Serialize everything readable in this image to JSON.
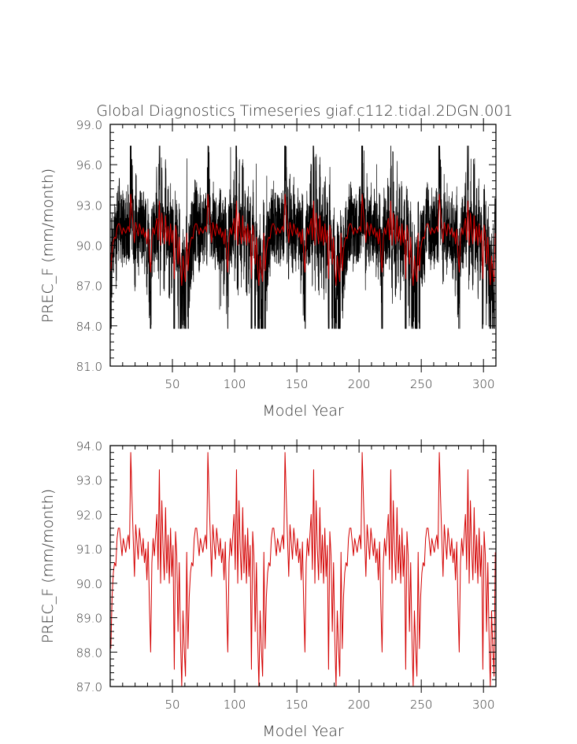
{
  "chart_data": [
    {
      "type": "line",
      "title": "Global Diagnostics Timeseries giaf.c112.tidal.2DGN.001",
      "xlabel": "Model Year",
      "ylabel": "PREC_F (mm/month)",
      "xlim": [
        0,
        310
      ],
      "ylim": [
        81.0,
        99.0
      ],
      "x_ticks": [
        50,
        100,
        150,
        200,
        250,
        300
      ],
      "y_ticks": [
        "81.0",
        "84.0",
        "87.0",
        "90.0",
        "93.0",
        "96.0",
        "99.0"
      ],
      "series": [
        {
          "color": "#000000",
          "x_start": 0.0417,
          "x_step": 0.0833,
          "count": 3720,
          "cycle_years": 62,
          "mean": 91.0,
          "noise_amplitude": 2.6,
          "min": 83.8,
          "max": 97.4
        },
        {
          "color": "#d40000",
          "x_start": 0.5,
          "x_step": 1,
          "count": 310,
          "cycle_years": 62,
          "mean": 91.0,
          "min": 87.0,
          "max": 93.8
        }
      ]
    },
    {
      "type": "line",
      "title": "",
      "xlabel": "Model Year",
      "ylabel": "PREC_F (mm/month)",
      "xlim": [
        0,
        310
      ],
      "ylim": [
        87.0,
        94.0
      ],
      "x_ticks": [
        50,
        100,
        150,
        200,
        250,
        300
      ],
      "y_ticks": [
        "87.0",
        "88.0",
        "89.0",
        "90.0",
        "91.0",
        "92.0",
        "93.0",
        "94.0"
      ],
      "series": [
        {
          "color": "#d40000",
          "x_start": 0.5,
          "x_step": 1,
          "count": 310,
          "cycle_years": 62,
          "cycle_values": [
            88.1,
            89.6,
            90.3,
            90.6,
            90.5,
            91.3,
            91.6,
            91.6,
            91.2,
            90.8,
            91.3,
            91.1,
            90.9,
            91.2,
            91.4,
            91.0,
            93.8,
            92.5,
            91.3,
            90.2,
            91.7,
            91.2,
            90.7,
            91.6,
            91.2,
            90.8,
            91.3,
            90.6,
            91.0,
            90.1,
            91.2,
            89.4,
            88.0,
            90.6,
            91.3,
            90.8,
            91.4,
            92.0,
            90.4,
            93.3,
            90.0,
            92.4,
            91.0,
            90.1,
            92.2,
            90.3,
            91.4,
            90.0,
            91.6,
            90.2,
            91.1,
            87.5,
            91.5,
            90.8,
            88.6,
            90.6,
            88.4,
            87.0,
            89.2,
            88.1,
            87.3,
            90.9
          ]
        }
      ]
    }
  ]
}
